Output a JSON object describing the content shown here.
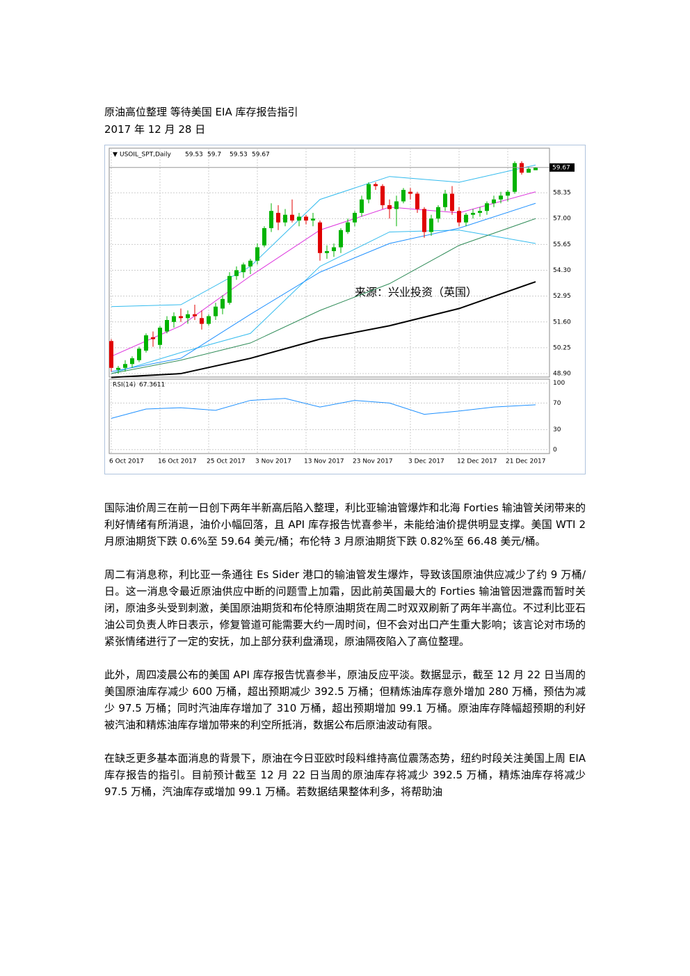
{
  "title": "原油高位整理 等待美国 EIA 库存报告指引",
  "date": "2017 年 12 月 28 日",
  "chart_data": {
    "type": "candlestick",
    "symbol": "USOIL_SPT,Daily",
    "annotation": "来源：兴业投资（英国）",
    "up_color": "#00b300",
    "down_color": "#e00000",
    "categories": [
      "6 Oct 2017",
      null,
      null,
      null,
      null,
      null,
      null,
      "16 Oct 2017",
      null,
      null,
      null,
      null,
      null,
      null,
      "25 Oct 2017",
      null,
      null,
      null,
      null,
      null,
      null,
      "3 Nov 2017",
      null,
      null,
      null,
      null,
      null,
      null,
      "13 Nov 2017",
      null,
      null,
      null,
      null,
      null,
      null,
      "23 Nov 2017",
      null,
      null,
      null,
      null,
      null,
      null,
      null,
      "3 Dec 2017",
      null,
      null,
      null,
      null,
      null,
      null,
      "12 Dec 2017",
      null,
      null,
      null,
      null,
      null,
      null,
      "21 Dec 2017",
      null,
      null,
      null,
      null
    ],
    "candles": [
      [
        50.6,
        50.7,
        49.0,
        49.2
      ],
      [
        49.1,
        49.3,
        48.9,
        49.2
      ],
      [
        49.2,
        49.6,
        49.0,
        49.4
      ],
      [
        49.4,
        49.8,
        49.2,
        49.7
      ],
      [
        49.6,
        50.3,
        49.5,
        50.2
      ],
      [
        50.1,
        51.0,
        50.0,
        50.9
      ],
      [
        50.8,
        51.1,
        50.3,
        50.7
      ],
      [
        50.4,
        51.4,
        50.2,
        51.3
      ],
      [
        51.1,
        51.9,
        51.0,
        51.7
      ],
      [
        51.6,
        52.1,
        51.3,
        51.9
      ],
      [
        51.9,
        52.3,
        51.6,
        51.8
      ],
      [
        51.8,
        52.2,
        51.5,
        52.0
      ],
      [
        52.0,
        52.5,
        51.7,
        51.9
      ],
      [
        51.8,
        52.2,
        51.2,
        51.5
      ],
      [
        51.5,
        52.0,
        51.4,
        51.9
      ],
      [
        51.9,
        52.6,
        51.7,
        52.4
      ],
      [
        52.3,
        53.0,
        52.0,
        52.8
      ],
      [
        52.6,
        54.2,
        52.5,
        54.0
      ],
      [
        54.0,
        54.5,
        53.8,
        54.3
      ],
      [
        54.2,
        54.7,
        53.9,
        54.6
      ],
      [
        54.5,
        54.9,
        54.1,
        54.8
      ],
      [
        54.8,
        55.7,
        54.6,
        55.5
      ],
      [
        55.6,
        56.6,
        55.5,
        56.5
      ],
      [
        56.5,
        57.8,
        56.3,
        57.4
      ],
      [
        57.3,
        57.7,
        56.4,
        56.8
      ],
      [
        56.8,
        57.5,
        56.6,
        57.2
      ],
      [
        57.2,
        58.0,
        56.8,
        56.9
      ],
      [
        56.9,
        57.3,
        56.6,
        57.1
      ],
      [
        57.1,
        57.2,
        56.7,
        56.9
      ],
      [
        56.9,
        57.3,
        56.6,
        57.0
      ],
      [
        56.8,
        56.9,
        54.8,
        55.2
      ],
      [
        55.2,
        55.6,
        54.9,
        55.3
      ],
      [
        55.3,
        55.7,
        55.0,
        55.5
      ],
      [
        55.5,
        56.5,
        55.2,
        56.4
      ],
      [
        56.3,
        57.0,
        56.2,
        56.8
      ],
      [
        56.8,
        57.4,
        56.6,
        57.3
      ],
      [
        57.3,
        58.2,
        57.1,
        58.0
      ],
      [
        58.0,
        58.9,
        57.8,
        58.8
      ],
      [
        58.8,
        58.9,
        58.5,
        58.7
      ],
      [
        58.7,
        58.8,
        57.5,
        57.7
      ],
      [
        57.7,
        58.0,
        57.0,
        57.5
      ],
      [
        57.5,
        58.2,
        56.6,
        57.9
      ],
      [
        57.9,
        58.6,
        57.8,
        58.5
      ],
      [
        58.4,
        58.6,
        58.0,
        58.3
      ],
      [
        58.3,
        58.4,
        57.3,
        57.5
      ],
      [
        57.5,
        57.6,
        56.0,
        56.3
      ],
      [
        56.3,
        57.2,
        56.1,
        57.0
      ],
      [
        57.0,
        57.7,
        56.8,
        57.6
      ],
      [
        57.6,
        58.5,
        57.4,
        58.3
      ],
      [
        58.3,
        58.7,
        57.2,
        57.4
      ],
      [
        57.4,
        57.6,
        56.6,
        56.8
      ],
      [
        56.8,
        57.3,
        56.6,
        57.2
      ],
      [
        57.2,
        57.5,
        57.0,
        57.3
      ],
      [
        57.3,
        57.6,
        57.1,
        57.4
      ],
      [
        57.4,
        57.9,
        57.2,
        57.8
      ],
      [
        57.8,
        58.2,
        57.6,
        58.0
      ],
      [
        58.0,
        58.4,
        57.8,
        58.2
      ],
      [
        58.2,
        58.5,
        57.9,
        58.4
      ],
      [
        58.4,
        60.0,
        58.3,
        59.9
      ],
      [
        59.9,
        60.0,
        59.3,
        59.4
      ],
      [
        59.4,
        59.7,
        59.4,
        59.6
      ],
      [
        59.53,
        59.7,
        59.53,
        59.67
      ]
    ],
    "line_x": [
      0,
      10,
      20,
      30,
      40,
      50,
      61
    ],
    "lines": [
      {
        "color": "#33bbee",
        "values": [
          52.4,
          52.5,
          54.5,
          58.0,
          59.2,
          58.9,
          59.8
        ]
      },
      {
        "color": "#33bbee",
        "values": [
          48.9,
          50.0,
          51.0,
          54.5,
          56.3,
          56.4,
          55.7
        ]
      },
      {
        "color": "#dd33dd",
        "values": [
          49.8,
          51.4,
          54.0,
          56.4,
          57.6,
          57.3,
          58.4
        ]
      },
      {
        "color": "#1e90ff",
        "values": [
          49.0,
          49.7,
          52.0,
          54.2,
          55.7,
          56.5,
          57.8
        ]
      },
      {
        "color": "#2e8b57",
        "values": [
          48.9,
          49.6,
          50.5,
          52.2,
          53.6,
          55.6,
          57.0
        ]
      },
      {
        "color": "#000000",
        "values": [
          48.7,
          48.9,
          49.7,
          50.7,
          51.4,
          52.3,
          53.7
        ]
      }
    ],
    "ylim": [
      48.72,
      60.68
    ],
    "yticks": [
      58.35,
      {
        "value": 57.0,
        "label": "57.00"
      },
      55.65,
      {
        "value": 54.3,
        "label": "54.30"
      },
      52.95,
      {
        "value": 51.6,
        "label": "51.60"
      },
      50.25,
      {
        "value": 48.9,
        "label": "48.90"
      }
    ],
    "grid": true,
    "rsi": {
      "label": "RSI(14)",
      "color": "#1e90ff",
      "x": [
        0,
        5,
        10,
        15,
        20,
        25,
        30,
        35,
        40,
        45,
        50,
        55,
        61
      ],
      "values": [
        47,
        61,
        63,
        59,
        74,
        77,
        64,
        74,
        70,
        53,
        58,
        64,
        67.3611
      ],
      "ylim": [
        -6,
        106
      ],
      "yticks": [
        100,
        70,
        30,
        0
      ]
    }
  },
  "paragraphs": [
    "国际油价周三在前一日创下两年半新高后陷入整理，利比亚输油管爆炸和北海 Forties 输油管关闭带来的利好情绪有所消退，油价小幅回落，且 API 库存报告忧喜参半，未能给油价提供明显支撑。美国 WTI 2 月原油期货下跌 0.6%至 59.64 美元/桶；布伦特 3 月原油期货下跌 0.82%至 66.48 美元/桶。",
    "周二有消息称，利比亚一条通往 Es Sider 港口的输油管发生爆炸，导致该国原油供应减少了约 9 万桶/日。这一消息令最近原油供应中断的问题雪上加霜，因此前英国最大的 Forties 输油管因泄露而暂时关闭，原油多头受到刺激，美国原油期货和布伦特原油期货在周二时双双刷新了两年半高位。不过利比亚石油公司负责人昨日表示，修复管道可能需要大约一周时间，但不会对出口产生重大影响；该言论对市场的紧张情绪进行了一定的安抚，加上部分获利盘涌现，原油隔夜陷入了高位整理。",
    "此外，周四凌晨公布的美国 API 库存报告忧喜参半，原油反应平淡。数据显示，截至 12 月 22 日当周的美国原油库存减少 600 万桶，超出预期减少 392.5 万桶；但精炼油库存意外增加 280 万桶，预估为减少 97.5 万桶；同时汽油库存增加了 310 万桶，超出预期增加 99.1 万桶。原油库存降幅超预期的利好被汽油和精炼油库存增加带来的利空所抵消，数据公布后原油波动有限。",
    "在缺乏更多基本面消息的背景下，原油在今日亚欧时段料维持高位震荡态势，纽约时段关注美国上周 EIA 库存报告的指引。目前预计截至 12 月 22 日当周的原油库存将减少 392.5 万桶，精炼油库存将减少 97.5 万桶，汽油库存或增加 99.1 万桶。若数据结果整体利多，将帮助油"
  ]
}
